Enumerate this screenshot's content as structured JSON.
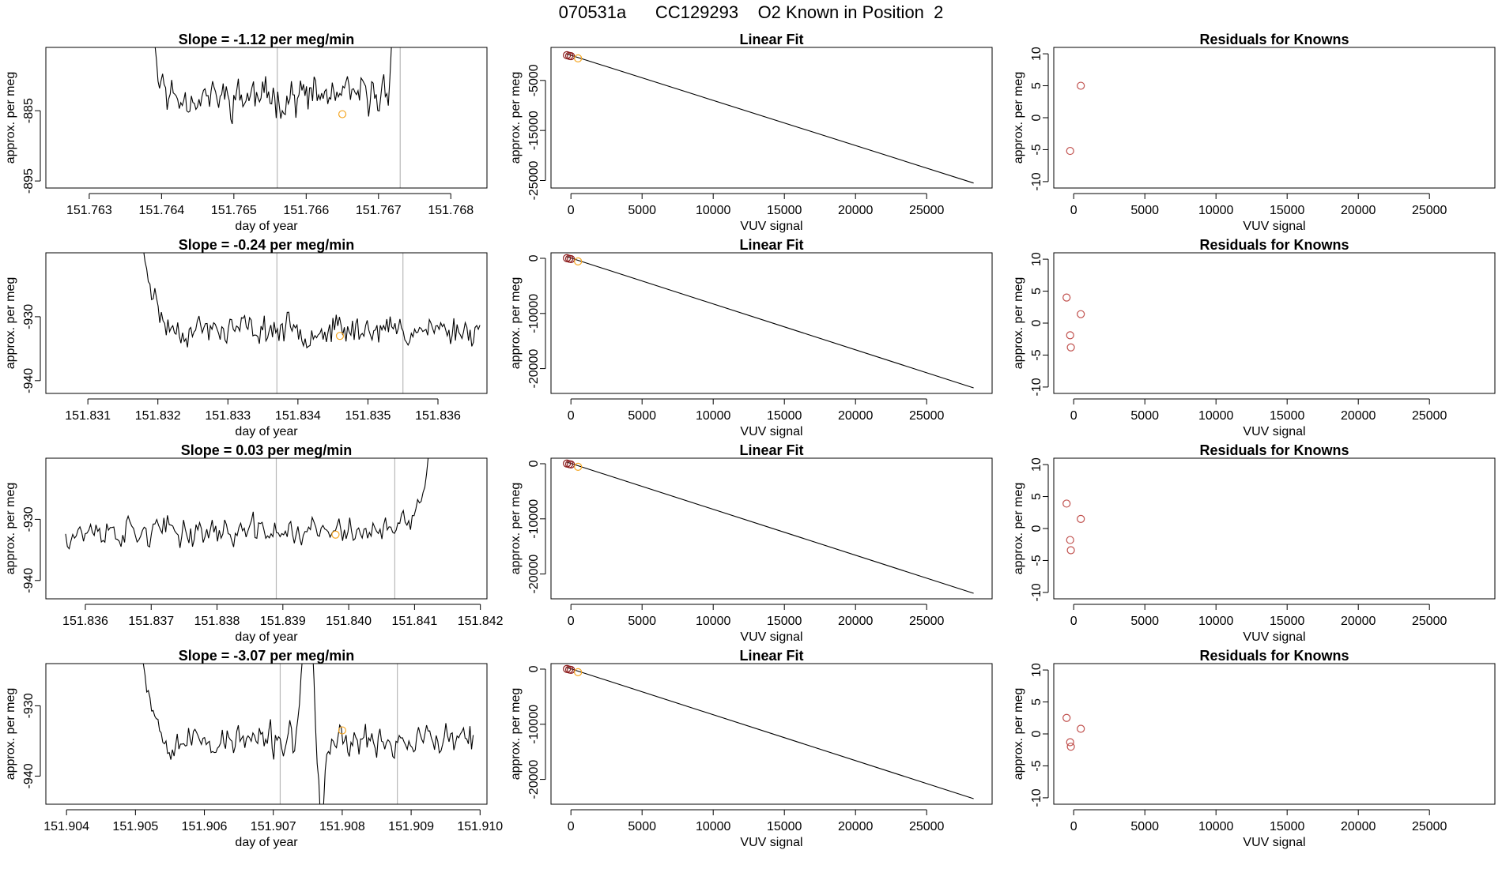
{
  "page_title": "070531a      CC129293    O2 Known in Position  2",
  "colors": {
    "line": "#000000",
    "axis": "#000000",
    "vline": "#b8b8b8",
    "known_point": "#c0504d",
    "highlight_point": "#f5a623",
    "fit_point": "#8b1a1a"
  },
  "chart_data": [
    {
      "type": "line",
      "panel": "slope",
      "row": 1,
      "title": "Slope =  -1.12  per meg/min",
      "xlabel": "day of year",
      "ylabel": "approx. per meg",
      "xlim": [
        151.7624,
        151.7685
      ],
      "ylim": [
        -896,
        -876
      ],
      "xticks": [
        151.763,
        151.764,
        151.765,
        151.766,
        151.767,
        151.768
      ],
      "xtick_labels": [
        "151.763",
        "151.764",
        "151.765",
        "151.766",
        "151.767",
        "151.768"
      ],
      "yticks": [
        -885,
        -895
      ],
      "ytick_labels": [
        "-885",
        "-895"
      ],
      "vlines": [
        151.7656,
        151.7673
      ],
      "series": {
        "x_start": 151.7637,
        "x_end": 151.7681,
        "base": -883.0,
        "amp": 2.6,
        "seed": 11,
        "spikes": [
          {
            "x": 151.7637,
            "width": 0.00018,
            "height": 30
          },
          {
            "x": 151.7673,
            "width": 8e-05,
            "height": 60
          },
          {
            "x": 151.7681,
            "width": 0.0005,
            "height": 40
          }
        ]
      },
      "highlight": {
        "x": 151.7665,
        "y": -885.5
      }
    },
    {
      "type": "scatter_line",
      "panel": "fit",
      "row": 1,
      "title": "Linear Fit",
      "xlabel": "VUV signal",
      "ylabel": "approx. per meg",
      "xlim": [
        -1400,
        29600
      ],
      "ylim": [
        -26500,
        1600
      ],
      "xticks": [
        0,
        5000,
        10000,
        15000,
        20000,
        25000
      ],
      "xtick_labels": [
        "0",
        "5000",
        "10000",
        "15000",
        "20000",
        "25000"
      ],
      "yticks": [
        -5000,
        -15000,
        -25000
      ],
      "ytick_labels": [
        "-5000",
        "-15000",
        "-25000"
      ],
      "fit_line": {
        "x": [
          -300,
          28300
        ],
        "y": [
          300,
          -25500
        ]
      },
      "points": [
        {
          "x": -280,
          "y": 40
        },
        {
          "x": -120,
          "y": -90
        },
        {
          "x": 0,
          "y": -150
        }
      ],
      "highlight": {
        "x": 500,
        "y": -590
      }
    },
    {
      "type": "scatter",
      "panel": "residuals",
      "row": 1,
      "title": "Residuals for Knowns",
      "xlabel": "VUV signal",
      "ylabel": "approx. per meg",
      "xlim": [
        -1400,
        29600
      ],
      "ylim": [
        -11,
        11
      ],
      "xticks": [
        0,
        5000,
        10000,
        15000,
        20000,
        25000
      ],
      "xtick_labels": [
        "0",
        "5000",
        "10000",
        "15000",
        "20000",
        "25000"
      ],
      "yticks": [
        10,
        5,
        0,
        -5,
        -10
      ],
      "ytick_labels": [
        "10",
        "5",
        "0",
        "-5",
        "-10"
      ],
      "points": [
        {
          "x": -250,
          "y": -5.2
        },
        {
          "x": 500,
          "y": 5.0
        }
      ]
    },
    {
      "type": "line",
      "panel": "slope",
      "row": 2,
      "title": "Slope =  -0.24  per meg/min",
      "xlabel": "day of year",
      "ylabel": "approx. per meg",
      "xlim": [
        151.8304,
        151.8367
      ],
      "ylim": [
        -942,
        -920
      ],
      "xticks": [
        151.831,
        151.832,
        151.833,
        151.834,
        151.835,
        151.836
      ],
      "xtick_labels": [
        "151.831",
        "151.832",
        "151.833",
        "151.834",
        "151.835",
        "151.836"
      ],
      "yticks": [
        -930,
        -940
      ],
      "ytick_labels": [
        "-930",
        "-940"
      ],
      "vlines": [
        151.8337,
        151.8355
      ],
      "series": {
        "x_start": 151.8317,
        "x_end": 151.8366,
        "base": -932.0,
        "amp": 2.2,
        "seed": 23,
        "spikes": [
          {
            "x": 151.8317,
            "width": 0.00025,
            "height": 14
          }
        ]
      },
      "highlight": {
        "x": 151.8346,
        "y": -933.0
      }
    },
    {
      "type": "scatter_line",
      "panel": "fit",
      "row": 2,
      "title": "Linear Fit",
      "xlabel": "VUV signal",
      "ylabel": "approx. per meg",
      "xlim": [
        -1400,
        29600
      ],
      "ylim": [
        -24500,
        1000
      ],
      "xticks": [
        0,
        5000,
        10000,
        15000,
        20000,
        25000
      ],
      "xtick_labels": [
        "0",
        "5000",
        "10000",
        "15000",
        "20000",
        "25000"
      ],
      "yticks": [
        0,
        -10000,
        -20000
      ],
      "ytick_labels": [
        "0",
        "-10000",
        "-20000"
      ],
      "fit_line": {
        "x": [
          -300,
          28300
        ],
        "y": [
          300,
          -23500
        ]
      },
      "points": [
        {
          "x": -280,
          "y": 30
        },
        {
          "x": -120,
          "y": -80
        },
        {
          "x": 0,
          "y": -140
        }
      ],
      "highlight": {
        "x": 500,
        "y": -560
      }
    },
    {
      "type": "scatter",
      "panel": "residuals",
      "row": 2,
      "title": "Residuals for Knowns",
      "xlabel": "VUV signal",
      "ylabel": "approx. per meg",
      "xlim": [
        -1400,
        29600
      ],
      "ylim": [
        -11,
        11
      ],
      "xticks": [
        0,
        5000,
        10000,
        15000,
        20000,
        25000
      ],
      "xtick_labels": [
        "0",
        "5000",
        "10000",
        "15000",
        "20000",
        "25000"
      ],
      "yticks": [
        10,
        5,
        0,
        -5,
        -10
      ],
      "ytick_labels": [
        "10",
        "5",
        "0",
        "-5",
        "-10"
      ],
      "points": [
        {
          "x": -500,
          "y": 4.0
        },
        {
          "x": 500,
          "y": 1.4
        },
        {
          "x": -250,
          "y": -1.9
        },
        {
          "x": -200,
          "y": -3.8
        }
      ]
    },
    {
      "type": "line",
      "panel": "slope",
      "row": 3,
      "title": "Slope =  0.03  per meg/min",
      "xlabel": "day of year",
      "ylabel": "approx. per meg",
      "xlim": [
        151.8354,
        151.8421
      ],
      "ylim": [
        -943,
        -920
      ],
      "xticks": [
        151.836,
        151.837,
        151.838,
        151.839,
        151.84,
        151.841,
        151.842
      ],
      "xtick_labels": [
        "151.836",
        "151.837",
        "151.838",
        "151.839",
        "151.840",
        "151.841",
        "151.842"
      ],
      "yticks": [
        -930,
        -940
      ],
      "ytick_labels": [
        "-930",
        "-940"
      ],
      "vlines": [
        151.8389,
        151.8407
      ],
      "series": {
        "x_start": 151.8357,
        "x_end": 151.8414,
        "base": -932.0,
        "amp": 2.3,
        "seed": 37,
        "spikes": [
          {
            "x": 151.8414,
            "width": 0.0003,
            "height": 16
          }
        ]
      },
      "highlight": {
        "x": 151.8398,
        "y": -932.5
      }
    },
    {
      "type": "scatter_line",
      "panel": "fit",
      "row": 3,
      "title": "Linear Fit",
      "xlabel": "VUV signal",
      "ylabel": "approx. per meg",
      "xlim": [
        -1400,
        29600
      ],
      "ylim": [
        -24500,
        1000
      ],
      "xticks": [
        0,
        5000,
        10000,
        15000,
        20000,
        25000
      ],
      "xtick_labels": [
        "0",
        "5000",
        "10000",
        "15000",
        "20000",
        "25000"
      ],
      "yticks": [
        0,
        -10000,
        -20000
      ],
      "ytick_labels": [
        "0",
        "-10000",
        "-20000"
      ],
      "fit_line": {
        "x": [
          -300,
          28300
        ],
        "y": [
          300,
          -23500
        ]
      },
      "points": [
        {
          "x": -280,
          "y": 30
        },
        {
          "x": -120,
          "y": -80
        },
        {
          "x": 0,
          "y": -140
        }
      ],
      "highlight": {
        "x": 500,
        "y": -560
      }
    },
    {
      "type": "scatter",
      "panel": "residuals",
      "row": 3,
      "title": "Residuals for Knowns",
      "xlabel": "VUV signal",
      "ylabel": "approx. per meg",
      "xlim": [
        -1400,
        29600
      ],
      "ylim": [
        -11,
        11
      ],
      "xticks": [
        0,
        5000,
        10000,
        15000,
        20000,
        25000
      ],
      "xtick_labels": [
        "0",
        "5000",
        "10000",
        "15000",
        "20000",
        "25000"
      ],
      "yticks": [
        10,
        5,
        0,
        -5,
        -10
      ],
      "ytick_labels": [
        "10",
        "5",
        "0",
        "-5",
        "-10"
      ],
      "points": [
        {
          "x": -500,
          "y": 3.9
        },
        {
          "x": 500,
          "y": 1.5
        },
        {
          "x": -250,
          "y": -1.8
        },
        {
          "x": -200,
          "y": -3.4
        }
      ]
    },
    {
      "type": "line",
      "panel": "slope",
      "row": 4,
      "title": "Slope =  -3.07  per meg/min",
      "xlabel": "day of year",
      "ylabel": "approx. per meg",
      "xlim": [
        151.9037,
        151.9101
      ],
      "ylim": [
        -944,
        -924
      ],
      "xticks": [
        151.904,
        151.905,
        151.906,
        151.907,
        151.908,
        151.909,
        151.91
      ],
      "xtick_labels": [
        "151.904",
        "151.905",
        "151.906",
        "151.907",
        "151.908",
        "151.909",
        "151.910"
      ],
      "yticks": [
        -930,
        -940
      ],
      "ytick_labels": [
        "-930",
        "-940"
      ],
      "vlines": [
        151.9071,
        151.9088
      ],
      "series": {
        "x_start": 151.905,
        "x_end": 151.9099,
        "base": -935.0,
        "amp": 2.2,
        "seed": 53,
        "spikes": [
          {
            "x": 151.905,
            "width": 0.00025,
            "height": 14
          },
          {
            "x": 151.9075,
            "width": 8e-05,
            "height": 30
          },
          {
            "x": 151.9077,
            "width": 6e-05,
            "height": -12
          }
        ]
      },
      "highlight": {
        "x": 151.908,
        "y": -933.5
      }
    },
    {
      "type": "scatter_line",
      "panel": "fit",
      "row": 4,
      "title": "Linear Fit",
      "xlabel": "VUV signal",
      "ylabel": "approx. per meg",
      "xlim": [
        -1400,
        29600
      ],
      "ylim": [
        -24500,
        1000
      ],
      "xticks": [
        0,
        5000,
        10000,
        15000,
        20000,
        25000
      ],
      "xtick_labels": [
        "0",
        "5000",
        "10000",
        "15000",
        "20000",
        "25000"
      ],
      "yticks": [
        0,
        -10000,
        -20000
      ],
      "ytick_labels": [
        "0",
        "-10000",
        "-20000"
      ],
      "fit_line": {
        "x": [
          -300,
          28300
        ],
        "y": [
          300,
          -23500
        ]
      },
      "points": [
        {
          "x": -280,
          "y": 30
        },
        {
          "x": -120,
          "y": -80
        },
        {
          "x": 0,
          "y": -140
        }
      ],
      "highlight": {
        "x": 500,
        "y": -560
      }
    },
    {
      "type": "scatter",
      "panel": "residuals",
      "row": 4,
      "title": "Residuals for Knowns",
      "xlabel": "VUV signal",
      "ylabel": "approx. per meg",
      "xlim": [
        -1400,
        29600
      ],
      "ylim": [
        -11,
        11
      ],
      "xticks": [
        0,
        5000,
        10000,
        15000,
        20000,
        25000
      ],
      "xtick_labels": [
        "0",
        "5000",
        "10000",
        "15000",
        "20000",
        "25000"
      ],
      "yticks": [
        10,
        5,
        0,
        -5,
        -10
      ],
      "ytick_labels": [
        "10",
        "5",
        "0",
        "-5",
        "-10"
      ],
      "points": [
        {
          "x": -500,
          "y": 2.5
        },
        {
          "x": 500,
          "y": 0.8
        },
        {
          "x": -250,
          "y": -1.3
        },
        {
          "x": -200,
          "y": -2.0
        }
      ]
    }
  ]
}
